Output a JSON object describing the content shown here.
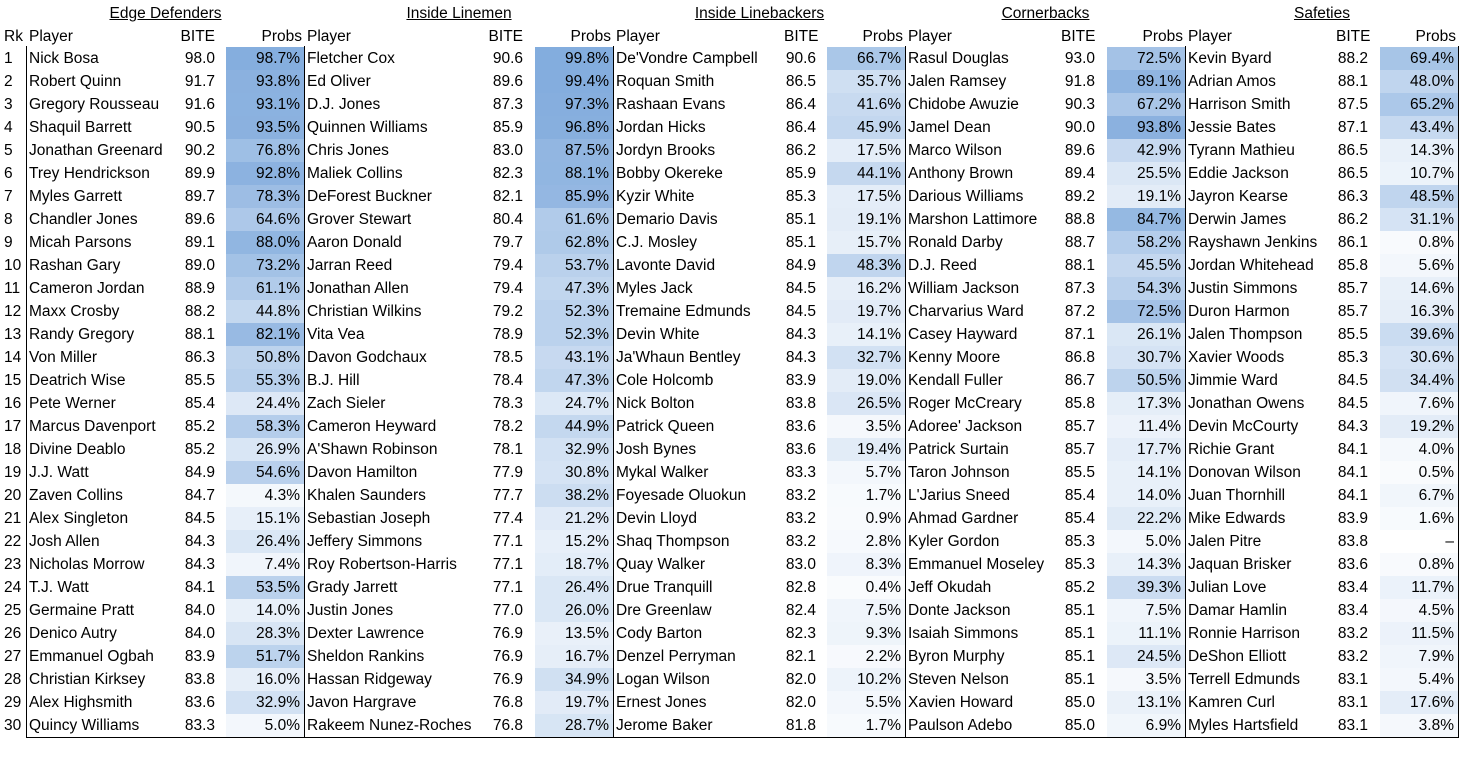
{
  "rank_header": "Rk",
  "groups": [
    {
      "title": "Edge Defenders",
      "col_player": "Player",
      "col_bite": "BITE",
      "col_probs": "Probs",
      "rows": [
        [
          "Nick Bosa",
          "98.0",
          "98.7%"
        ],
        [
          "Robert Quinn",
          "91.7",
          "93.8%"
        ],
        [
          "Gregory Rousseau",
          "91.6",
          "93.1%"
        ],
        [
          "Shaquil Barrett",
          "90.5",
          "93.5%"
        ],
        [
          "Jonathan Greenard",
          "90.2",
          "76.8%"
        ],
        [
          "Trey Hendrickson",
          "89.9",
          "92.8%"
        ],
        [
          "Myles Garrett",
          "89.7",
          "78.3%"
        ],
        [
          "Chandler Jones",
          "89.6",
          "64.6%"
        ],
        [
          "Micah Parsons",
          "89.1",
          "88.0%"
        ],
        [
          "Rashan Gary",
          "89.0",
          "73.2%"
        ],
        [
          "Cameron Jordan",
          "88.9",
          "61.1%"
        ],
        [
          "Maxx Crosby",
          "88.2",
          "44.8%"
        ],
        [
          "Randy Gregory",
          "88.1",
          "82.1%"
        ],
        [
          "Von Miller",
          "86.3",
          "50.8%"
        ],
        [
          "Deatrich Wise",
          "85.5",
          "55.3%"
        ],
        [
          "Pete Werner",
          "85.4",
          "24.4%"
        ],
        [
          "Marcus Davenport",
          "85.2",
          "58.3%"
        ],
        [
          "Divine Deablo",
          "85.2",
          "26.9%"
        ],
        [
          "J.J. Watt",
          "84.9",
          "54.6%"
        ],
        [
          "Zaven Collins",
          "84.7",
          "4.3%"
        ],
        [
          "Alex Singleton",
          "84.5",
          "15.1%"
        ],
        [
          "Josh Allen",
          "84.3",
          "26.4%"
        ],
        [
          "Nicholas Morrow",
          "84.3",
          "7.4%"
        ],
        [
          "T.J. Watt",
          "84.1",
          "53.5%"
        ],
        [
          "Germaine Pratt",
          "84.0",
          "14.0%"
        ],
        [
          "Denico Autry",
          "84.0",
          "28.3%"
        ],
        [
          "Emmanuel Ogbah",
          "83.9",
          "51.7%"
        ],
        [
          "Christian Kirksey",
          "83.8",
          "16.0%"
        ],
        [
          "Alex Highsmith",
          "83.6",
          "32.9%"
        ],
        [
          "Quincy Williams",
          "83.3",
          "5.0%"
        ]
      ]
    },
    {
      "title": "Inside Linemen",
      "col_player": "Player",
      "col_bite": "BITE",
      "col_probs": "Probs",
      "rows": [
        [
          "Fletcher Cox",
          "90.6",
          "99.8%"
        ],
        [
          "Ed Oliver",
          "89.6",
          "99.4%"
        ],
        [
          "D.J. Jones",
          "87.3",
          "97.3%"
        ],
        [
          "Quinnen Williams",
          "85.9",
          "96.8%"
        ],
        [
          "Chris Jones",
          "83.0",
          "87.5%"
        ],
        [
          "Maliek Collins",
          "82.3",
          "88.1%"
        ],
        [
          "DeForest Buckner",
          "82.1",
          "85.9%"
        ],
        [
          "Grover Stewart",
          "80.4",
          "61.6%"
        ],
        [
          "Aaron Donald",
          "79.7",
          "62.8%"
        ],
        [
          "Jarran Reed",
          "79.4",
          "53.7%"
        ],
        [
          "Jonathan Allen",
          "79.4",
          "47.3%"
        ],
        [
          "Christian Wilkins",
          "79.2",
          "52.3%"
        ],
        [
          "Vita Vea",
          "78.9",
          "52.3%"
        ],
        [
          "Davon Godchaux",
          "78.5",
          "43.1%"
        ],
        [
          "B.J. Hill",
          "78.4",
          "47.3%"
        ],
        [
          "Zach Sieler",
          "78.3",
          "24.7%"
        ],
        [
          "Cameron Heyward",
          "78.2",
          "44.9%"
        ],
        [
          "A'Shawn Robinson",
          "78.1",
          "32.9%"
        ],
        [
          "Davon Hamilton",
          "77.9",
          "30.8%"
        ],
        [
          "Khalen Saunders",
          "77.7",
          "38.2%"
        ],
        [
          "Sebastian Joseph",
          "77.4",
          "21.2%"
        ],
        [
          "Jeffery Simmons",
          "77.1",
          "15.2%"
        ],
        [
          "Roy Robertson-Harris",
          "77.1",
          "18.7%"
        ],
        [
          "Grady Jarrett",
          "77.1",
          "26.4%"
        ],
        [
          "Justin Jones",
          "77.0",
          "26.0%"
        ],
        [
          "Dexter Lawrence",
          "76.9",
          "13.5%"
        ],
        [
          "Sheldon Rankins",
          "76.9",
          "16.7%"
        ],
        [
          "Hassan Ridgeway",
          "76.9",
          "34.9%"
        ],
        [
          "Javon Hargrave",
          "76.8",
          "19.7%"
        ],
        [
          "Rakeem Nunez-Roches",
          "76.8",
          "28.7%"
        ]
      ]
    },
    {
      "title": "Inside Linebackers",
      "col_player": "Player",
      "col_bite": "BITE",
      "col_probs": "Probs",
      "rows": [
        [
          "De'Vondre Campbell",
          "90.6",
          "66.7%"
        ],
        [
          "Roquan Smith",
          "86.5",
          "35.7%"
        ],
        [
          "Rashaan Evans",
          "86.4",
          "41.6%"
        ],
        [
          "Jordan Hicks",
          "86.4",
          "45.9%"
        ],
        [
          "Jordyn Brooks",
          "86.2",
          "17.5%"
        ],
        [
          "Bobby Okereke",
          "85.9",
          "44.1%"
        ],
        [
          "Kyzir White",
          "85.3",
          "17.5%"
        ],
        [
          "Demario Davis",
          "85.1",
          "19.1%"
        ],
        [
          "C.J. Mosley",
          "85.1",
          "15.7%"
        ],
        [
          "Lavonte David",
          "84.9",
          "48.3%"
        ],
        [
          "Myles Jack",
          "84.5",
          "16.2%"
        ],
        [
          "Tremaine Edmunds",
          "84.5",
          "19.7%"
        ],
        [
          "Devin White",
          "84.3",
          "14.1%"
        ],
        [
          "Ja'Whaun Bentley",
          "84.3",
          "32.7%"
        ],
        [
          "Cole Holcomb",
          "83.9",
          "19.0%"
        ],
        [
          "Nick Bolton",
          "83.8",
          "26.5%"
        ],
        [
          "Patrick Queen",
          "83.6",
          "3.5%"
        ],
        [
          "Josh Bynes",
          "83.6",
          "19.4%"
        ],
        [
          "Mykal Walker",
          "83.3",
          "5.7%"
        ],
        [
          "Foyesade Oluokun",
          "83.2",
          "1.7%"
        ],
        [
          "Devin Lloyd",
          "83.2",
          "0.9%"
        ],
        [
          "Shaq Thompson",
          "83.2",
          "2.8%"
        ],
        [
          "Quay Walker",
          "83.0",
          "8.3%"
        ],
        [
          "Drue Tranquill",
          "82.8",
          "0.4%"
        ],
        [
          "Dre Greenlaw",
          "82.4",
          "7.5%"
        ],
        [
          "Cody Barton",
          "82.3",
          "9.3%"
        ],
        [
          "Denzel Perryman",
          "82.1",
          "2.2%"
        ],
        [
          "Logan Wilson",
          "82.0",
          "10.2%"
        ],
        [
          "Ernest Jones",
          "82.0",
          "5.5%"
        ],
        [
          "Jerome Baker",
          "81.8",
          "1.7%"
        ]
      ]
    },
    {
      "title": "Cornerbacks",
      "col_player": "Player",
      "col_bite": "BITE",
      "col_probs": "Probs",
      "rows": [
        [
          "Rasul Douglas",
          "93.0",
          "72.5%"
        ],
        [
          "Jalen Ramsey",
          "91.8",
          "89.1%"
        ],
        [
          "Chidobe Awuzie",
          "90.3",
          "67.2%"
        ],
        [
          "Jamel Dean",
          "90.0",
          "93.8%"
        ],
        [
          "Marco Wilson",
          "89.6",
          "42.9%"
        ],
        [
          "Anthony Brown",
          "89.4",
          "25.5%"
        ],
        [
          "Darious Williams",
          "89.2",
          "19.1%"
        ],
        [
          "Marshon Lattimore",
          "88.8",
          "84.7%"
        ],
        [
          "Ronald Darby",
          "88.7",
          "58.2%"
        ],
        [
          "D.J. Reed",
          "88.1",
          "45.5%"
        ],
        [
          "William Jackson",
          "87.3",
          "54.3%"
        ],
        [
          "Charvarius Ward",
          "87.2",
          "72.5%"
        ],
        [
          "Casey Hayward",
          "87.1",
          "26.1%"
        ],
        [
          "Kenny Moore",
          "86.8",
          "30.7%"
        ],
        [
          "Kendall Fuller",
          "86.7",
          "50.5%"
        ],
        [
          "Roger McCreary",
          "85.8",
          "17.3%"
        ],
        [
          "Adoree' Jackson",
          "85.7",
          "11.4%"
        ],
        [
          "Patrick Surtain",
          "85.7",
          "17.7%"
        ],
        [
          "Taron Johnson",
          "85.5",
          "14.1%"
        ],
        [
          "L'Jarius Sneed",
          "85.4",
          "14.0%"
        ],
        [
          "Ahmad Gardner",
          "85.4",
          "22.2%"
        ],
        [
          "Kyler Gordon",
          "85.3",
          "5.0%"
        ],
        [
          "Emmanuel Moseley",
          "85.3",
          "14.3%"
        ],
        [
          "Jeff Okudah",
          "85.2",
          "39.3%"
        ],
        [
          "Donte Jackson",
          "85.1",
          "7.5%"
        ],
        [
          "Isaiah Simmons",
          "85.1",
          "11.1%"
        ],
        [
          "Byron Murphy",
          "85.1",
          "24.5%"
        ],
        [
          "Steven Nelson",
          "85.1",
          "3.5%"
        ],
        [
          "Xavien Howard",
          "85.0",
          "13.1%"
        ],
        [
          "Paulson Adebo",
          "85.0",
          "6.9%"
        ]
      ]
    },
    {
      "title": "Safeties",
      "col_player": "Player",
      "col_bite": "BITE",
      "col_probs": "Probs",
      "rows": [
        [
          "Kevin Byard",
          "88.2",
          "69.4%"
        ],
        [
          "Adrian Amos",
          "88.1",
          "48.0%"
        ],
        [
          "Harrison Smith",
          "87.5",
          "65.2%"
        ],
        [
          "Jessie Bates",
          "87.1",
          "43.4%"
        ],
        [
          "Tyrann Mathieu",
          "86.5",
          "14.3%"
        ],
        [
          "Eddie Jackson",
          "86.5",
          "10.7%"
        ],
        [
          "Jayron Kearse",
          "86.3",
          "48.5%"
        ],
        [
          "Derwin James",
          "86.2",
          "31.1%"
        ],
        [
          "Rayshawn Jenkins",
          "86.1",
          "0.8%"
        ],
        [
          "Jordan Whitehead",
          "85.8",
          "5.6%"
        ],
        [
          "Justin Simmons",
          "85.7",
          "14.6%"
        ],
        [
          "Duron Harmon",
          "85.7",
          "16.3%"
        ],
        [
          "Jalen Thompson",
          "85.5",
          "39.6%"
        ],
        [
          "Xavier Woods",
          "85.3",
          "30.6%"
        ],
        [
          "Jimmie Ward",
          "84.5",
          "34.4%"
        ],
        [
          "Jonathan Owens",
          "84.5",
          "7.6%"
        ],
        [
          "Devin McCourty",
          "84.3",
          "19.2%"
        ],
        [
          "Richie Grant",
          "84.1",
          "4.0%"
        ],
        [
          "Donovan Wilson",
          "84.1",
          "0.5%"
        ],
        [
          "Juan Thornhill",
          "84.1",
          "6.7%"
        ],
        [
          "Mike Edwards",
          "83.9",
          "1.6%"
        ],
        [
          "Jalen Pitre",
          "83.8",
          "–"
        ],
        [
          "Jaquan Brisker",
          "83.6",
          "0.8%"
        ],
        [
          "Julian Love",
          "83.4",
          "11.7%"
        ],
        [
          "Damar Hamlin",
          "83.4",
          "4.5%"
        ],
        [
          "Ronnie Harrison",
          "83.2",
          "11.5%"
        ],
        [
          "DeShon Elliott",
          "83.2",
          "7.9%"
        ],
        [
          "Terrell Edmunds",
          "83.1",
          "5.4%"
        ],
        [
          "Kamren Curl",
          "83.1",
          "17.6%"
        ],
        [
          "Myles Hartsfield",
          "83.1",
          "3.8%"
        ]
      ]
    }
  ],
  "colors": {
    "probs_fill": "#6f9fd8",
    "border": "#000000",
    "background": "#ffffff"
  }
}
